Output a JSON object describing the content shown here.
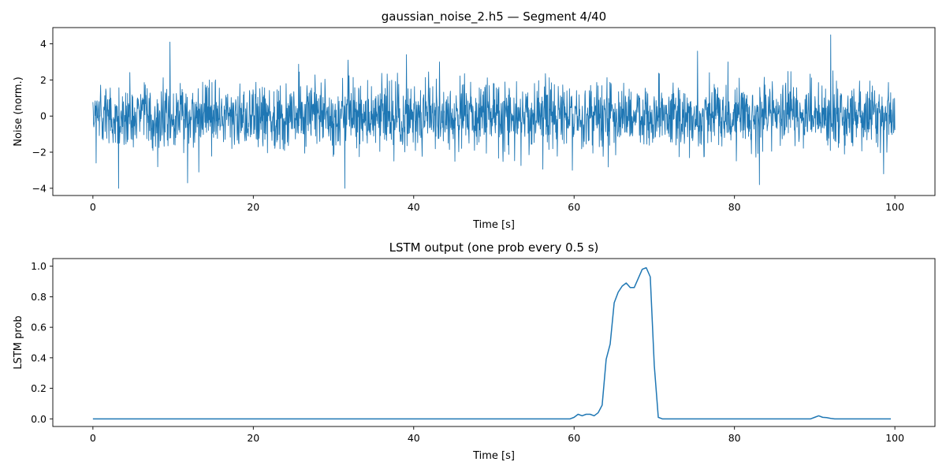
{
  "chart_data": [
    {
      "type": "line",
      "title": "gaussian_noise_2.h5 — Segment 4/40",
      "xlabel": "Time [s]",
      "ylabel": "Noise (norm.)",
      "xlim": [
        -5,
        105
      ],
      "ylim": [
        -4.4,
        4.9
      ],
      "xticks": [
        0,
        20,
        40,
        60,
        80,
        100
      ],
      "xtick_labels": [
        "0",
        "20",
        "40",
        "60",
        "80",
        "100"
      ],
      "yticks": [
        -4,
        -2,
        0,
        2,
        4
      ],
      "ytick_labels": [
        "−4",
        "−2",
        "0",
        "2",
        "4"
      ],
      "grid": false,
      "legend": "none",
      "color": "#1f77b4",
      "sampling": {
        "t_start": 0,
        "t_end": 100,
        "n_points": 2500,
        "distribution": "gaussian",
        "mean": 0,
        "std": 0.9
      },
      "extremes": [
        {
          "x": 0.4,
          "y": -2.6
        },
        {
          "x": 3.2,
          "y": -4.0
        },
        {
          "x": 9.6,
          "y": 4.1
        },
        {
          "x": 11.8,
          "y": -3.7
        },
        {
          "x": 13.2,
          "y": -3.1
        },
        {
          "x": 31.4,
          "y": -4.0
        },
        {
          "x": 31.8,
          "y": 3.1
        },
        {
          "x": 39.1,
          "y": 3.4
        },
        {
          "x": 59.8,
          "y": -3.0
        },
        {
          "x": 75.4,
          "y": 3.6
        },
        {
          "x": 83.1,
          "y": -3.8
        },
        {
          "x": 92.0,
          "y": 4.5
        },
        {
          "x": 98.6,
          "y": -3.2
        }
      ]
    },
    {
      "type": "line",
      "title": "LSTM output (one prob every 0.5 s)",
      "xlabel": "Time [s]",
      "ylabel": "LSTM prob",
      "xlim": [
        -5,
        105
      ],
      "ylim": [
        -0.05,
        1.05
      ],
      "xticks": [
        0,
        20,
        40,
        60,
        80,
        100
      ],
      "xtick_labels": [
        "0",
        "20",
        "40",
        "60",
        "80",
        "100"
      ],
      "yticks": [
        0.0,
        0.2,
        0.4,
        0.6,
        0.8,
        1.0
      ],
      "ytick_labels": [
        "0.0",
        "0.2",
        "0.4",
        "0.6",
        "0.8",
        "1.0"
      ],
      "grid": false,
      "legend": "none",
      "color": "#1f77b4",
      "x": [
        0,
        59.5,
        60.0,
        60.5,
        61.0,
        61.5,
        62.0,
        62.5,
        63.0,
        63.5,
        64.0,
        64.5,
        65.0,
        65.5,
        66.0,
        66.5,
        67.0,
        67.5,
        68.0,
        68.5,
        69.0,
        69.5,
        70.0,
        70.5,
        71.0,
        89.5,
        90.0,
        90.5,
        91.0,
        91.5,
        92.0,
        92.5,
        99.5
      ],
      "y": [
        0.0,
        0.0,
        0.01,
        0.03,
        0.02,
        0.03,
        0.03,
        0.02,
        0.04,
        0.09,
        0.39,
        0.49,
        0.76,
        0.83,
        0.87,
        0.89,
        0.86,
        0.86,
        0.92,
        0.98,
        0.99,
        0.93,
        0.35,
        0.01,
        0.0,
        0.0,
        0.01,
        0.02,
        0.01,
        0.008,
        0.003,
        0.0,
        0.0
      ]
    }
  ]
}
